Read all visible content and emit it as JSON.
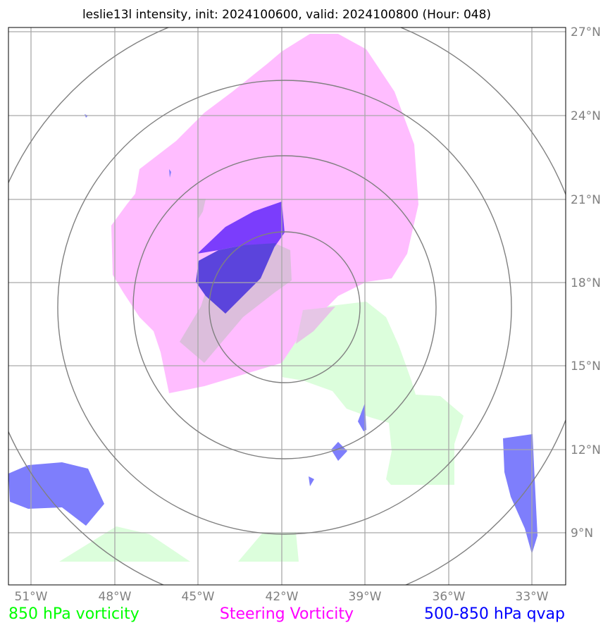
{
  "title": "leslie13l intensity, init: 2024100600, valid: 2024100800 (Hour: 048)",
  "map": {
    "longitude_labels": [
      "51°W",
      "48°W",
      "45°W",
      "42°W",
      "39°W",
      "36°W",
      "33°W"
    ],
    "latitude_labels": [
      "27°N",
      "24°N",
      "21°N",
      "18°N",
      "15°N",
      "12°N",
      "9°N"
    ],
    "grid_color": "#a9a9a9",
    "range_ring_color": "#808080",
    "layers": [
      {
        "name": "850 hPa vorticity",
        "color": "#00ff00",
        "fill": "#dcfedc"
      },
      {
        "name": "Steering Vorticity",
        "color": "#ff00ff",
        "fill": "#ffbdff"
      },
      {
        "name": "500-850 hPa qvap",
        "color": "#0000ff",
        "fill": "#7e7efc"
      }
    ]
  },
  "legend": {
    "left": "850 hPa vorticity",
    "center": "Steering Vorticity",
    "right": "500-850 hPa qvap",
    "left_color": "#00ff00",
    "center_color": "#ff00ff",
    "right_color": "#0000ff"
  }
}
